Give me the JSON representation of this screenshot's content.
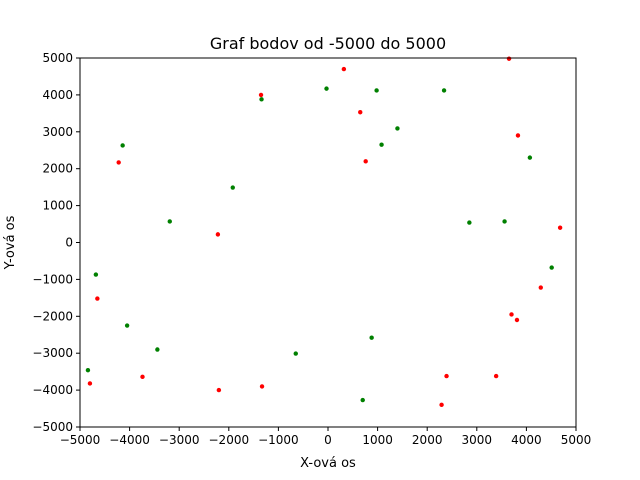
{
  "chart_data": {
    "type": "scatter",
    "title": "Graf bodov od -5000 do 5000",
    "xlabel": "X-ová os",
    "ylabel": "Y-ová os",
    "xlim": [
      -5000,
      5000
    ],
    "ylim": [
      -5000,
      5000
    ],
    "xticks": [
      -5000,
      -4000,
      -3000,
      -2000,
      -1000,
      0,
      1000,
      2000,
      3000,
      4000,
      5000
    ],
    "yticks": [
      -5000,
      -4000,
      -3000,
      -2000,
      -1000,
      0,
      1000,
      2000,
      3000,
      4000,
      5000
    ],
    "grid": false,
    "series": [
      {
        "color": "#ff0000",
        "points": [
          [
            -1350,
            4000
          ],
          [
            320,
            4700
          ],
          [
            650,
            3530
          ],
          [
            3650,
            4980
          ],
          [
            -4220,
            2170
          ],
          [
            760,
            2200
          ],
          [
            3830,
            2900
          ],
          [
            -2220,
            220
          ],
          [
            4680,
            400
          ],
          [
            -4650,
            -1520
          ],
          [
            4290,
            -1220
          ],
          [
            3700,
            -1950
          ],
          [
            3810,
            -2100
          ],
          [
            -3740,
            -3640
          ],
          [
            -4800,
            -3820
          ],
          [
            -2200,
            -4000
          ],
          [
            -1330,
            -3900
          ],
          [
            2390,
            -3620
          ],
          [
            3390,
            -3620
          ],
          [
            2290,
            -4400
          ]
        ]
      },
      {
        "color": "#008000",
        "points": [
          [
            -30,
            4170
          ],
          [
            980,
            4120
          ],
          [
            2340,
            4120
          ],
          [
            -1340,
            3880
          ],
          [
            1400,
            3090
          ],
          [
            -4140,
            2630
          ],
          [
            1080,
            2650
          ],
          [
            4070,
            2300
          ],
          [
            -1920,
            1490
          ],
          [
            -3190,
            570
          ],
          [
            2850,
            540
          ],
          [
            3560,
            570
          ],
          [
            -4680,
            -870
          ],
          [
            4510,
            -680
          ],
          [
            -4050,
            -2250
          ],
          [
            880,
            -2580
          ],
          [
            -3440,
            -2900
          ],
          [
            -650,
            -3010
          ],
          [
            -4840,
            -3460
          ],
          [
            700,
            -4270
          ]
        ]
      }
    ]
  }
}
